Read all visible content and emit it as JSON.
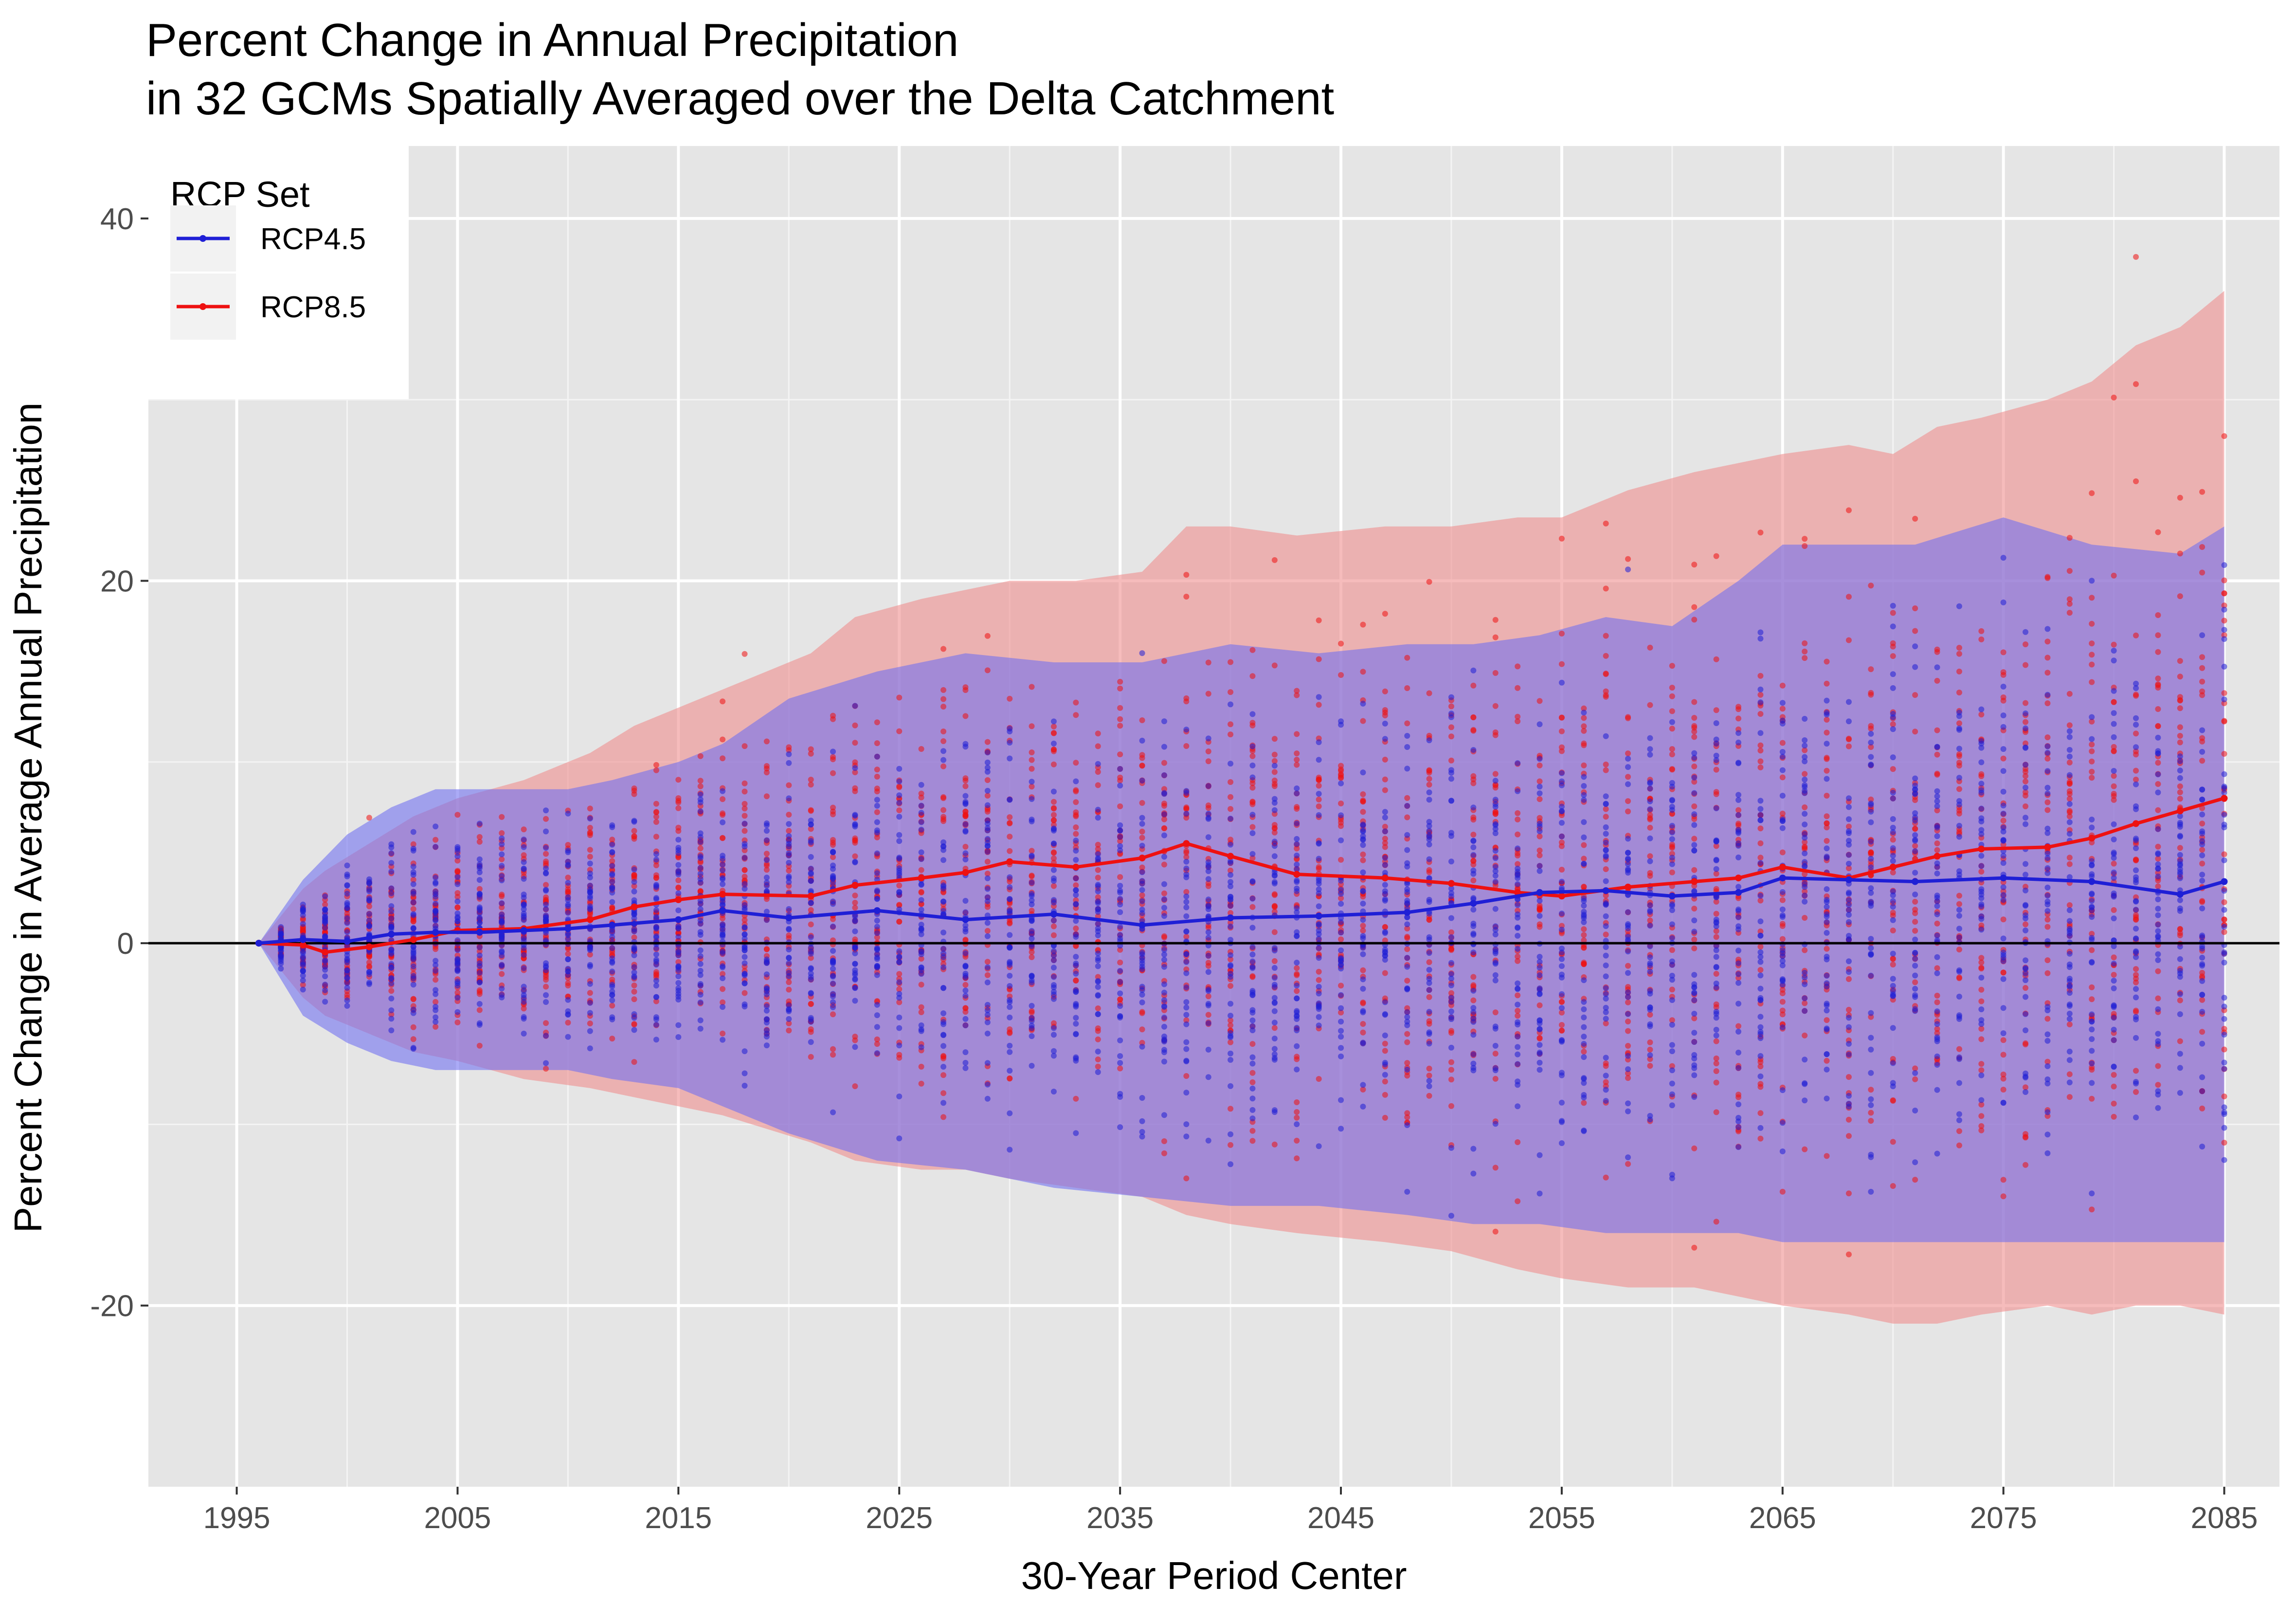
{
  "chart_data": {
    "type": "line",
    "title": "Percent Change in Annual Precipitation",
    "subtitle": "in 32 GCMs Spatially Averaged over the Delta Catchment",
    "xlabel": "30-Year Period Center",
    "ylabel": "Percent Change in Average Annual Precipitation",
    "x_ticks": [
      1995,
      2005,
      2015,
      2025,
      2035,
      2045,
      2055,
      2065,
      2075,
      2085
    ],
    "y_ticks": [
      -20,
      0,
      20,
      40
    ],
    "xlim": [
      1991,
      2087.5
    ],
    "ylim": [
      -30,
      44
    ],
    "grid": true,
    "background": "#e5e5e5",
    "reference_line": {
      "y": 0,
      "color": "#000000"
    },
    "legend": {
      "title": "RCP Set",
      "position": "top-left",
      "entries": [
        {
          "name": "RCP4.5",
          "color": "#1f1fd6"
        },
        {
          "name": "RCP8.5",
          "color": "#ee1111"
        }
      ]
    },
    "series": [
      {
        "name": "RCP4.5",
        "color": "#1f1fd6",
        "band_color": "#6f6ff2",
        "x": [
          1996,
          1998,
          2000,
          2002,
          2004,
          2006,
          2008,
          2010,
          2012,
          2015,
          2017,
          2020,
          2024,
          2028,
          2032,
          2036,
          2040,
          2044,
          2048,
          2051,
          2054,
          2057,
          2060,
          2063,
          2065,
          2068,
          2071,
          2075,
          2079,
          2083,
          2085
        ],
        "mean": [
          0,
          0.2,
          0.1,
          0.5,
          0.6,
          0.6,
          0.7,
          0.8,
          1.0,
          1.3,
          1.8,
          1.4,
          1.8,
          1.3,
          1.6,
          1.0,
          1.4,
          1.5,
          1.7,
          2.2,
          2.8,
          2.9,
          2.6,
          2.8,
          3.6,
          3.5,
          3.4,
          3.6,
          3.4,
          2.7,
          3.4
        ],
        "upper": [
          0,
          3.5,
          6.0,
          7.5,
          8.5,
          8.5,
          8.5,
          8.5,
          9.0,
          10.0,
          11.0,
          13.5,
          15.0,
          16.0,
          15.5,
          15.5,
          16.5,
          16.0,
          16.5,
          16.5,
          17.0,
          18.0,
          17.5,
          20.0,
          22.0,
          22.0,
          22.0,
          23.5,
          22.0,
          21.5,
          23.0
        ],
        "lower": [
          0,
          -4.0,
          -5.5,
          -6.5,
          -7.0,
          -7.0,
          -7.0,
          -7.0,
          -7.5,
          -8.0,
          -9.0,
          -10.5,
          -12.0,
          -12.5,
          -13.5,
          -14.0,
          -14.5,
          -14.5,
          -15.0,
          -15.5,
          -15.5,
          -16.0,
          -16.0,
          -16.0,
          -16.5,
          -16.5,
          -16.5,
          -16.5,
          -16.5,
          -16.5,
          -16.5
        ]
      },
      {
        "name": "RCP8.5",
        "color": "#ee1111",
        "band_color": "#f08c8c",
        "x": [
          1996,
          1998,
          1999,
          2001,
          2003,
          2005,
          2008,
          2011,
          2013,
          2015,
          2017,
          2021,
          2023,
          2026,
          2028,
          2030,
          2033,
          2036,
          2038,
          2040,
          2043,
          2047,
          2050,
          2053,
          2055,
          2058,
          2061,
          2063,
          2065,
          2068,
          2070,
          2072,
          2074,
          2077,
          2079,
          2081,
          2083,
          2085
        ],
        "mean": [
          0,
          -0.1,
          -0.5,
          -0.2,
          0.2,
          0.7,
          0.8,
          1.3,
          2.0,
          2.4,
          2.7,
          2.6,
          3.2,
          3.6,
          3.9,
          4.5,
          4.2,
          4.7,
          5.5,
          4.8,
          3.8,
          3.6,
          3.3,
          2.8,
          2.6,
          3.1,
          3.4,
          3.6,
          4.2,
          3.6,
          4.2,
          4.8,
          5.2,
          5.3,
          5.8,
          6.6,
          7.3,
          8.0
        ],
        "upper": [
          0,
          3.0,
          4.0,
          5.5,
          7.0,
          8.0,
          9.0,
          10.5,
          12.0,
          13.0,
          14.0,
          16.0,
          18.0,
          19.0,
          19.5,
          20.0,
          20.0,
          20.5,
          23.0,
          23.0,
          22.5,
          23.0,
          23.0,
          23.5,
          23.5,
          25.0,
          26.0,
          26.5,
          27.0,
          27.5,
          27.0,
          28.5,
          29.0,
          30.0,
          31.0,
          33.0,
          34.0,
          36.0
        ],
        "lower": [
          0,
          -3.0,
          -4.0,
          -5.0,
          -6.0,
          -6.5,
          -7.5,
          -8.0,
          -8.5,
          -9.0,
          -9.5,
          -11.0,
          -12.0,
          -12.5,
          -12.5,
          -13.0,
          -13.5,
          -14.0,
          -15.0,
          -15.5,
          -16.0,
          -16.5,
          -17.0,
          -18.0,
          -18.5,
          -19.0,
          -19.0,
          -19.5,
          -20.0,
          -20.5,
          -21.0,
          -21.0,
          -20.5,
          -20.0,
          -20.5,
          -20.0,
          -20.0,
          -20.5
        ]
      }
    ]
  }
}
